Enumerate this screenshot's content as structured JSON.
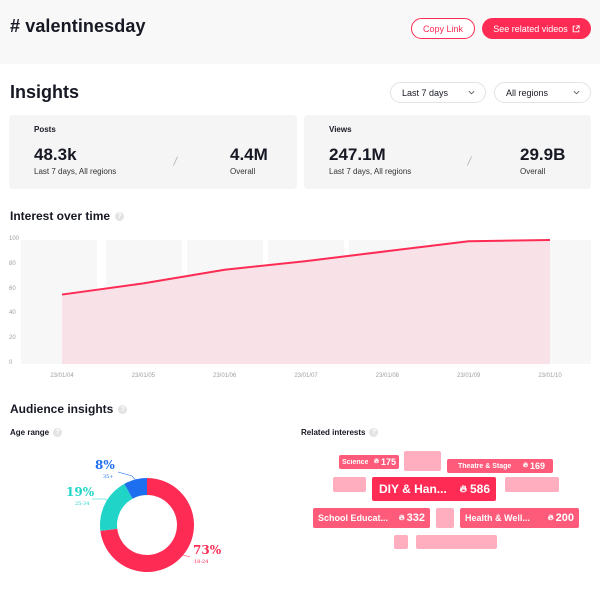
{
  "header": {
    "title": "# valentinesday",
    "copy_link_label": "Copy Link",
    "related_videos_label": "See related videos",
    "related_videos_icon": "external-link-icon"
  },
  "insights": {
    "title": "Insights",
    "filters": {
      "period": {
        "selected": "Last 7 days",
        "icon": "chevron-down-icon"
      },
      "region": {
        "selected": "All regions",
        "icon": "chevron-down-icon"
      }
    },
    "cards": [
      {
        "label": "Posts",
        "value": "48.3k",
        "value_sub": "Last 7 days, All regions",
        "overall": "4.4M",
        "overall_sub": "Overall"
      },
      {
        "label": "Views",
        "value": "247.1M",
        "value_sub": "Last 7 days, All regions",
        "overall": "29.9B",
        "overall_sub": "Overall"
      }
    ]
  },
  "interest_over_time": {
    "title": "Interest over time",
    "help_icon": "question-circle-icon",
    "y_ticks": [
      "100",
      "80",
      "60",
      "40",
      "20",
      "0"
    ],
    "x_ticks": [
      "23/01/04",
      "23/01/05",
      "23/01/06",
      "23/01/07",
      "23/01/08",
      "23/01/09",
      "23/01/10"
    ]
  },
  "audience": {
    "title": "Audience insights",
    "help_icon": "question-circle-icon",
    "age_range": {
      "title": "Age range",
      "segments": [
        {
          "pct": "73%",
          "label": "18-24",
          "value": 73,
          "color": "#fe2c55"
        },
        {
          "pct": "19%",
          "label": "25-34",
          "value": 19,
          "color": "#20d5c8"
        },
        {
          "pct": "8%",
          "label": "35+",
          "value": 8,
          "color": "#1e6ff0"
        }
      ]
    },
    "related_interests": {
      "title": "Related interests",
      "fire_icon": "fire-icon",
      "items": [
        {
          "name": "Science",
          "count": "175"
        },
        {
          "name": "Theatre & Stage",
          "count": "169"
        },
        {
          "name": "DIY & Han...",
          "count": "586"
        },
        {
          "name": "School Educat...",
          "count": "332"
        },
        {
          "name": "Health & Well...",
          "count": "200"
        }
      ]
    }
  },
  "chart_data": {
    "type": "area",
    "title": "Interest over time",
    "xlabel": "",
    "ylabel": "",
    "categories": [
      "23/01/04",
      "23/01/05",
      "23/01/06",
      "23/01/07",
      "23/01/08",
      "23/01/09",
      "23/01/10"
    ],
    "values": [
      56,
      65,
      76,
      83,
      91,
      99,
      100
    ],
    "ylim": [
      0,
      100
    ],
    "y_ticks": [
      0,
      20,
      40,
      60,
      80,
      100
    ],
    "grid": false,
    "color": "#fe2c55",
    "fill": "#f8e0e6"
  }
}
